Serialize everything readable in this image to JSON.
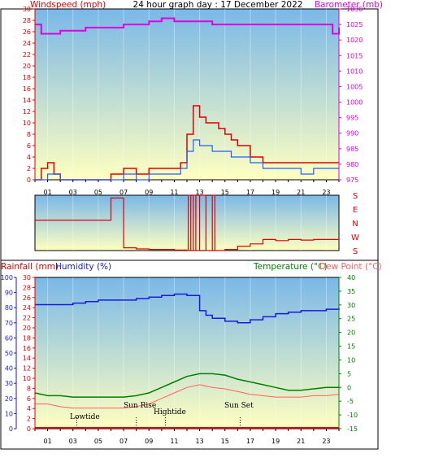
{
  "header": {
    "title": "24 hour graph day : 17 December 2022",
    "left_label": "Windspeed (mph)",
    "right_label": "Barometer (mb)"
  },
  "lower_header": {
    "rainfall_label": "Rainfall (mm)",
    "humidity_label": "Humidity (%)",
    "temperature_label": "Temperature (°C)",
    "dewpoint_label": "Dew Point (°C)"
  },
  "x_ticks": [
    "01",
    "03",
    "05",
    "07",
    "09",
    "11",
    "13",
    "15",
    "17",
    "19",
    "21",
    "23"
  ],
  "colors": {
    "wind": "#e00000",
    "wind_avg": "#2060ff",
    "barometer": "#e000e0",
    "humidity": "#1a1adf",
    "temperature": "#008000",
    "dewpoint": "#ff6060",
    "rain": "#e00000",
    "plot_top": "#7ab8e8",
    "plot_bottom": "#ffffc0"
  },
  "chart_data": [
    {
      "type": "line",
      "name": "wind_and_pressure",
      "x_unit": "hour",
      "ylim_left": [
        0,
        30
      ],
      "yticks_left": [
        0,
        2,
        4,
        6,
        8,
        10,
        12,
        14,
        16,
        18,
        20,
        22,
        24,
        26,
        28,
        30
      ],
      "ylim_right": [
        975,
        1030
      ],
      "yticks_right": [
        975,
        980,
        985,
        990,
        995,
        1000,
        1005,
        1010,
        1015,
        1020,
        1025,
        1030
      ],
      "series": [
        {
          "x": [
            0,
            0.5,
            1,
            1.5,
            2,
            3,
            4,
            5,
            6,
            7,
            8,
            9,
            10,
            11,
            11.5,
            12,
            12.5,
            13,
            13.5,
            14,
            14.5,
            15,
            15.5,
            16,
            17,
            18,
            19,
            20,
            21,
            22,
            23,
            24
          ],
          "values": [
            0,
            2,
            3,
            1,
            0,
            0,
            0,
            0,
            1,
            2,
            1,
            2,
            2,
            2,
            3,
            8,
            13,
            11,
            10,
            10,
            9,
            8,
            7,
            6,
            4,
            3,
            3,
            3,
            3,
            3,
            3,
            3
          ]
        },
        {
          "x": [
            0,
            1,
            2,
            3,
            4,
            5,
            6,
            7,
            8,
            9,
            10,
            11,
            11.5,
            12,
            12.5,
            13,
            13.5,
            14,
            14.5,
            15,
            15.5,
            16,
            17,
            18,
            19,
            20,
            21,
            22,
            23,
            24
          ],
          "values": [
            0,
            1,
            0,
            0,
            0,
            0,
            0,
            1,
            0,
            1,
            1,
            1,
            2,
            5,
            7,
            6,
            6,
            5,
            5,
            5,
            4,
            4,
            3,
            2,
            2,
            2,
            1,
            2,
            2,
            2
          ]
        },
        {
          "x": [
            0,
            0.5,
            1,
            2,
            3,
            4,
            5,
            6,
            7,
            8,
            9,
            10,
            11,
            12,
            13,
            14,
            15,
            16,
            17,
            18,
            19,
            20,
            21,
            22,
            23,
            23.5,
            24
          ],
          "values": [
            1025,
            1022,
            1022,
            1023,
            1023,
            1024,
            1024,
            1024,
            1025,
            1025,
            1026,
            1027,
            1026,
            1026,
            1026,
            1025,
            1025,
            1025,
            1025,
            1025,
            1025,
            1025,
            1025,
            1025,
            1025,
            1022,
            1024
          ]
        }
      ]
    },
    {
      "type": "line",
      "name": "wind_direction",
      "ylabels": [
        "S",
        "E",
        "N",
        "W",
        "S"
      ],
      "x": [
        0,
        6,
        6,
        7,
        7,
        8,
        9,
        10,
        11,
        12,
        12.1,
        12.3,
        12.5,
        12.7,
        13,
        13.5,
        14,
        14.2,
        15,
        16,
        17,
        18,
        19,
        20,
        21,
        22,
        23,
        24
      ],
      "values": [
        45,
        45,
        5,
        5,
        95,
        97,
        98,
        98,
        99,
        100,
        0,
        100,
        0,
        100,
        0,
        100,
        0,
        100,
        98,
        92,
        88,
        80,
        82,
        80,
        81,
        80,
        80,
        79
      ]
    },
    {
      "type": "line",
      "name": "temperature_humidity_rain",
      "ylim_rain": [
        0,
        30
      ],
      "yticks_rain": [
        0,
        2,
        4,
        6,
        8,
        10,
        12,
        14,
        16,
        18,
        20,
        22,
        24,
        26,
        28,
        30
      ],
      "ylim_humidity": [
        0,
        100
      ],
      "yticks_humidity": [
        0,
        10,
        20,
        30,
        40,
        50,
        60,
        70,
        80,
        90,
        100
      ],
      "ylim_temp": [
        -15,
        40
      ],
      "yticks_temp": [
        -15,
        -10,
        -5,
        0,
        5,
        10,
        15,
        20,
        25,
        30,
        35,
        40
      ],
      "annotations": [
        "Lowtide",
        "Sun Rise",
        "Hightide",
        "Sun Set"
      ],
      "series": [
        {
          "x": [
            0,
            1,
            2,
            3,
            4,
            5,
            6,
            7,
            8,
            9,
            10,
            11,
            11.5,
            12,
            13,
            13.5,
            14,
            15,
            16,
            17,
            18,
            19,
            20,
            21,
            22,
            23,
            24
          ],
          "values": [
            82,
            82,
            82,
            83,
            84,
            85,
            85,
            85,
            86,
            87,
            88,
            89,
            89,
            88,
            78,
            75,
            73,
            71,
            70,
            72,
            74,
            76,
            77,
            78,
            78,
            79,
            80
          ]
        },
        {
          "x": [
            0,
            1,
            2,
            3,
            4,
            5,
            6,
            7,
            8,
            9,
            10,
            11,
            12,
            13,
            14,
            15,
            16,
            17,
            18,
            19,
            20,
            21,
            22,
            23,
            24
          ],
          "values": [
            -2,
            -3,
            -3,
            -3.5,
            -3.5,
            -3.5,
            -3.5,
            -3.5,
            -3,
            -2,
            0,
            2,
            4,
            5,
            5,
            4.5,
            3,
            2,
            1,
            0,
            -1,
            -1,
            -0.5,
            0,
            0
          ]
        },
        {
          "x": [
            0,
            1,
            2,
            3,
            4,
            5,
            6,
            7,
            8,
            9,
            10,
            11,
            12,
            13,
            14,
            15,
            16,
            17,
            18,
            19,
            20,
            21,
            22,
            23,
            24
          ],
          "values": [
            -6,
            -6,
            -7,
            -7.5,
            -7.5,
            -7.5,
            -7.5,
            -7.5,
            -7,
            -6,
            -4,
            -2,
            0,
            1,
            0,
            -0.5,
            -1.5,
            -2.5,
            -3,
            -3.5,
            -3.5,
            -3.5,
            -3,
            -3,
            -2.5
          ]
        },
        {
          "x": [
            0,
            24
          ],
          "values": [
            0,
            0
          ]
        }
      ]
    }
  ]
}
